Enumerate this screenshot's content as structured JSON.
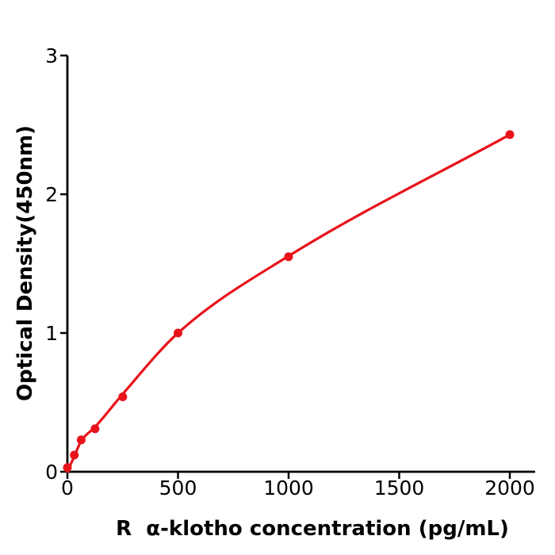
{
  "chart_data": {
    "type": "scatter",
    "title": "",
    "xlabel": "R  α-klotho concentration (pg/mL)",
    "ylabel": "Optical Density(450nm)",
    "x": [
      0,
      31.25,
      62.5,
      125,
      250,
      500,
      1000,
      2000
    ],
    "y": [
      0.03,
      0.12,
      0.23,
      0.31,
      0.54,
      1.0,
      1.55,
      2.43
    ],
    "fit_curve_x": [
      0,
      31.25,
      62.5,
      125,
      250,
      500,
      1000,
      2000
    ],
    "fit_curve_y": [
      0.0,
      0.112,
      0.222,
      0.322,
      0.56,
      1.0,
      1.555,
      2.43
    ],
    "x_ticks": [
      0,
      500,
      1000,
      1500,
      2000
    ],
    "y_ticks": [
      0,
      1,
      2,
      3
    ],
    "xlim": [
      0,
      2115
    ],
    "ylim": [
      0,
      3
    ],
    "grid": false,
    "legend": "none",
    "marker": "circle",
    "marker_color": "#e8131b",
    "line_color": "#e8131b",
    "axis_color": "#000000",
    "background_color": "#ffffff"
  }
}
